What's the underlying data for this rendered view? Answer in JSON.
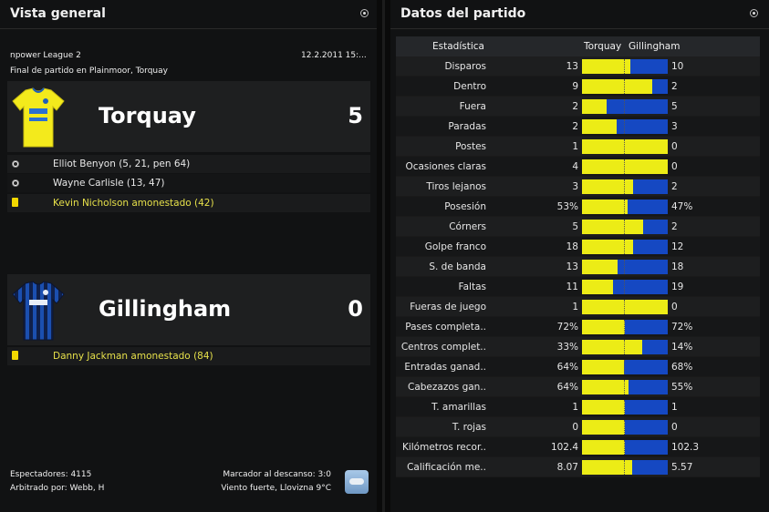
{
  "left_panel": {
    "title": "Vista general",
    "competition": "npower League 2",
    "date": "12.2.2011 15:...",
    "venue": "Final de partido en Plainmoor, Torquay",
    "home": {
      "name": "Torquay",
      "score": "5",
      "shirt": "kit-yellow-icon",
      "events": [
        {
          "icon": "ball-icon",
          "text": "Elliot Benyon (5, 21, pen 64)",
          "color": "#e8e8e8"
        },
        {
          "icon": "ball-icon",
          "text": "Wayne Carlisle (13, 47)",
          "color": "#e8e8e8"
        },
        {
          "icon": "yellow-card-icon",
          "text": "Kevin Nicholson amonestado (42)",
          "color": "#e6e04a"
        }
      ]
    },
    "away": {
      "name": "Gillingham",
      "score": "0",
      "shirt": "kit-blue-striped-icon",
      "events": [
        {
          "icon": "yellow-card-icon",
          "text": "Danny Jackman amonestado (84)",
          "color": "#e6e04a"
        }
      ]
    },
    "footer": {
      "spectators": "Espectadores: 4115",
      "referee": "Arbitrado por: Webb, H",
      "halftime": "Marcador al descanso: 3:0",
      "weather": "Viento fuerte, Llovizna 9°C",
      "weather_icon": "rain-cloud-icon"
    }
  },
  "right_panel": {
    "title": "Datos del partido",
    "columns": {
      "stat": "Estadística",
      "home": "Torquay",
      "away": "Gillingham"
    },
    "home_color": "#ecec16",
    "away_color": "#1548c2",
    "rows": [
      {
        "label": "Disparos",
        "home": "13",
        "away": "10",
        "share": 0.565
      },
      {
        "label": "Dentro",
        "home": "9",
        "away": "2",
        "share": 0.818
      },
      {
        "label": "Fuera",
        "home": "2",
        "away": "5",
        "share": 0.286
      },
      {
        "label": "Paradas",
        "home": "2",
        "away": "3",
        "share": 0.4
      },
      {
        "label": "Postes",
        "home": "1",
        "away": "0",
        "share": 1.0
      },
      {
        "label": "Ocasiones claras",
        "home": "4",
        "away": "0",
        "share": 1.0
      },
      {
        "label": "Tiros lejanos",
        "home": "3",
        "away": "2",
        "share": 0.6
      },
      {
        "label": "Posesión",
        "home": "53%",
        "away": "47%",
        "share": 0.53
      },
      {
        "label": "Córners",
        "home": "5",
        "away": "2",
        "share": 0.714
      },
      {
        "label": "Golpe franco",
        "home": "18",
        "away": "12",
        "share": 0.6
      },
      {
        "label": "S. de banda",
        "home": "13",
        "away": "18",
        "share": 0.419
      },
      {
        "label": "Faltas",
        "home": "11",
        "away": "19",
        "share": 0.367
      },
      {
        "label": "Fueras de juego",
        "home": "1",
        "away": "0",
        "share": 1.0
      },
      {
        "label": "Pases completa..",
        "home": "72%",
        "away": "72%",
        "share": 0.5
      },
      {
        "label": "Centros complet..",
        "home": "33%",
        "away": "14%",
        "share": 0.7
      },
      {
        "label": "Entradas ganad..",
        "home": "64%",
        "away": "68%",
        "share": 0.485
      },
      {
        "label": "Cabezazos gan..",
        "home": "64%",
        "away": "55%",
        "share": 0.538
      },
      {
        "label": "T. amarillas",
        "home": "1",
        "away": "1",
        "share": 0.5
      },
      {
        "label": "T. rojas",
        "home": "0",
        "away": "0",
        "share": 0.5
      },
      {
        "label": "Kilómetros recor..",
        "home": "102.4",
        "away": "102.3",
        "share": 0.5
      },
      {
        "label": "Calificación me..",
        "home": "8.07",
        "away": "5.57",
        "share": 0.59
      }
    ]
  }
}
